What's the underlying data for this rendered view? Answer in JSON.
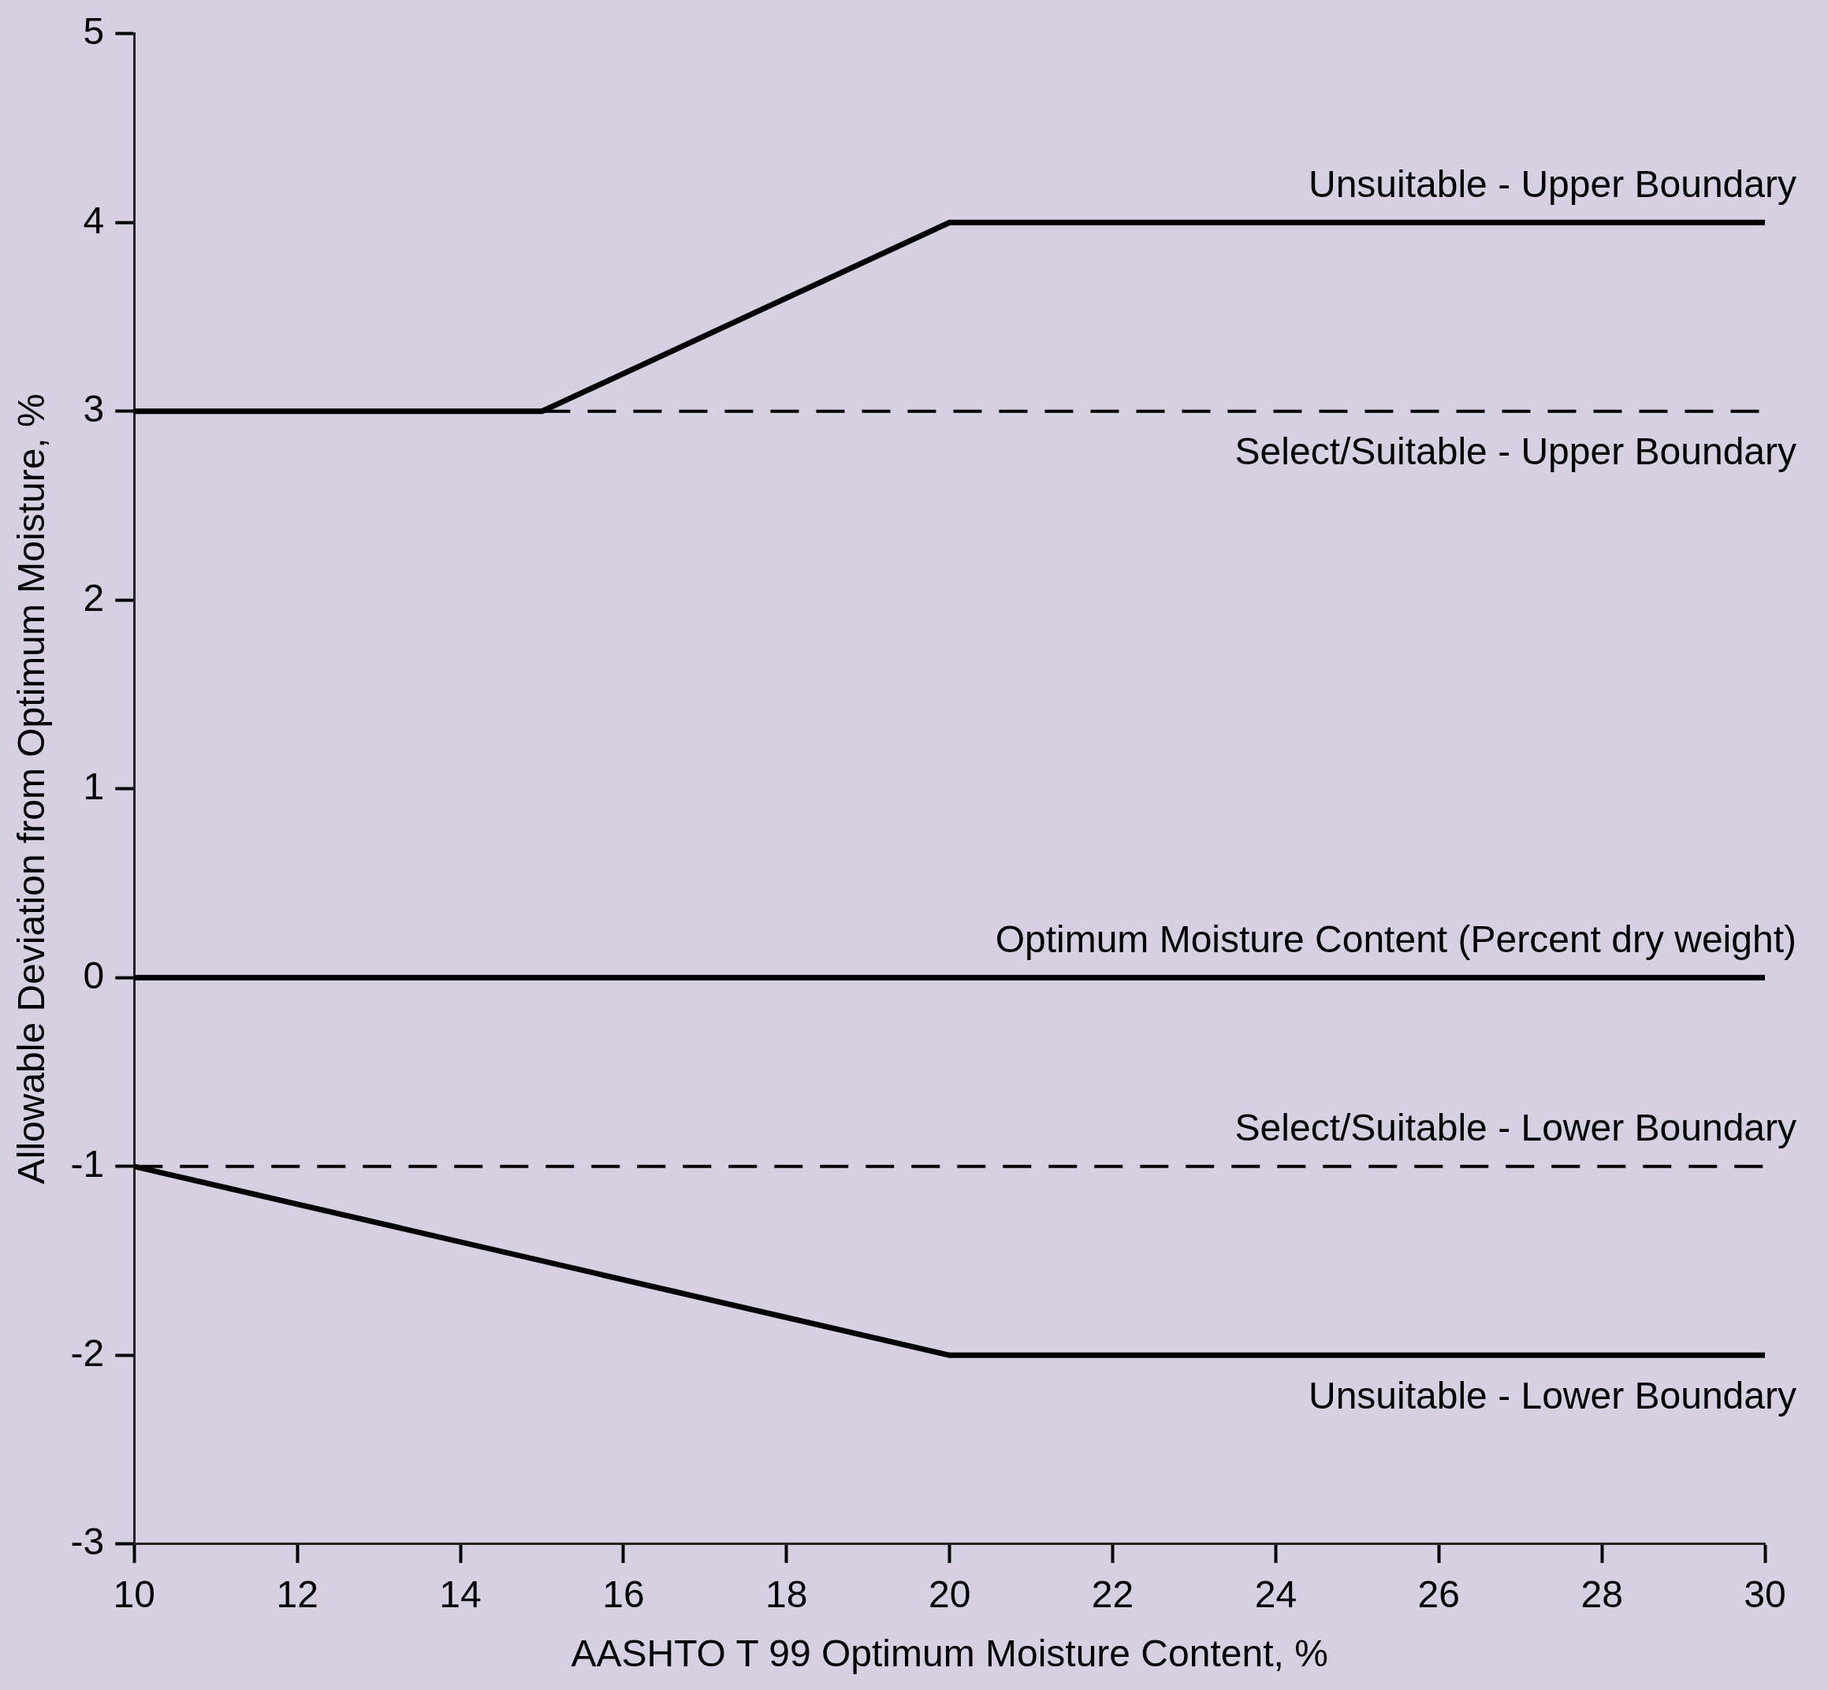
{
  "chart_data": {
    "type": "line",
    "xlabel": "AASHTO T 99 Optimum Moisture Content, %",
    "ylabel": "Allowable Deviation from Optimum Moisture, %",
    "xlim": [
      10,
      30
    ],
    "ylim": [
      -3,
      5
    ],
    "xticks": [
      10,
      12,
      14,
      16,
      18,
      20,
      22,
      24,
      26,
      28,
      30
    ],
    "yticks": [
      -3,
      -2,
      -1,
      0,
      1,
      2,
      3,
      4,
      5
    ],
    "grid": false,
    "legend": false,
    "marker": "none",
    "series": [
      {
        "name": "Unsuitable - Upper Boundary",
        "color": "#000000",
        "x": [
          10,
          15,
          20,
          30
        ],
        "values": [
          3,
          3,
          4,
          4
        ]
      },
      {
        "name": "Select/Suitable - Upper Boundary",
        "color": "#000000",
        "x": [
          15,
          30
        ],
        "values": [
          3,
          3
        ],
        "line_style": "dashed"
      },
      {
        "name": "Optimum Moisture Content (Percent dry weight)",
        "color": "#000000",
        "x": [
          10,
          30
        ],
        "values": [
          0,
          0
        ]
      },
      {
        "name": "Select/Suitable - Lower Boundary",
        "color": "#000000",
        "x": [
          10,
          30
        ],
        "values": [
          -1,
          -1
        ],
        "line_style": "dashed"
      },
      {
        "name": "Unsuitable - Lower Boundary",
        "color": "#000000",
        "x": [
          10,
          20,
          30
        ],
        "values": [
          -1,
          -2,
          -2
        ]
      }
    ]
  }
}
